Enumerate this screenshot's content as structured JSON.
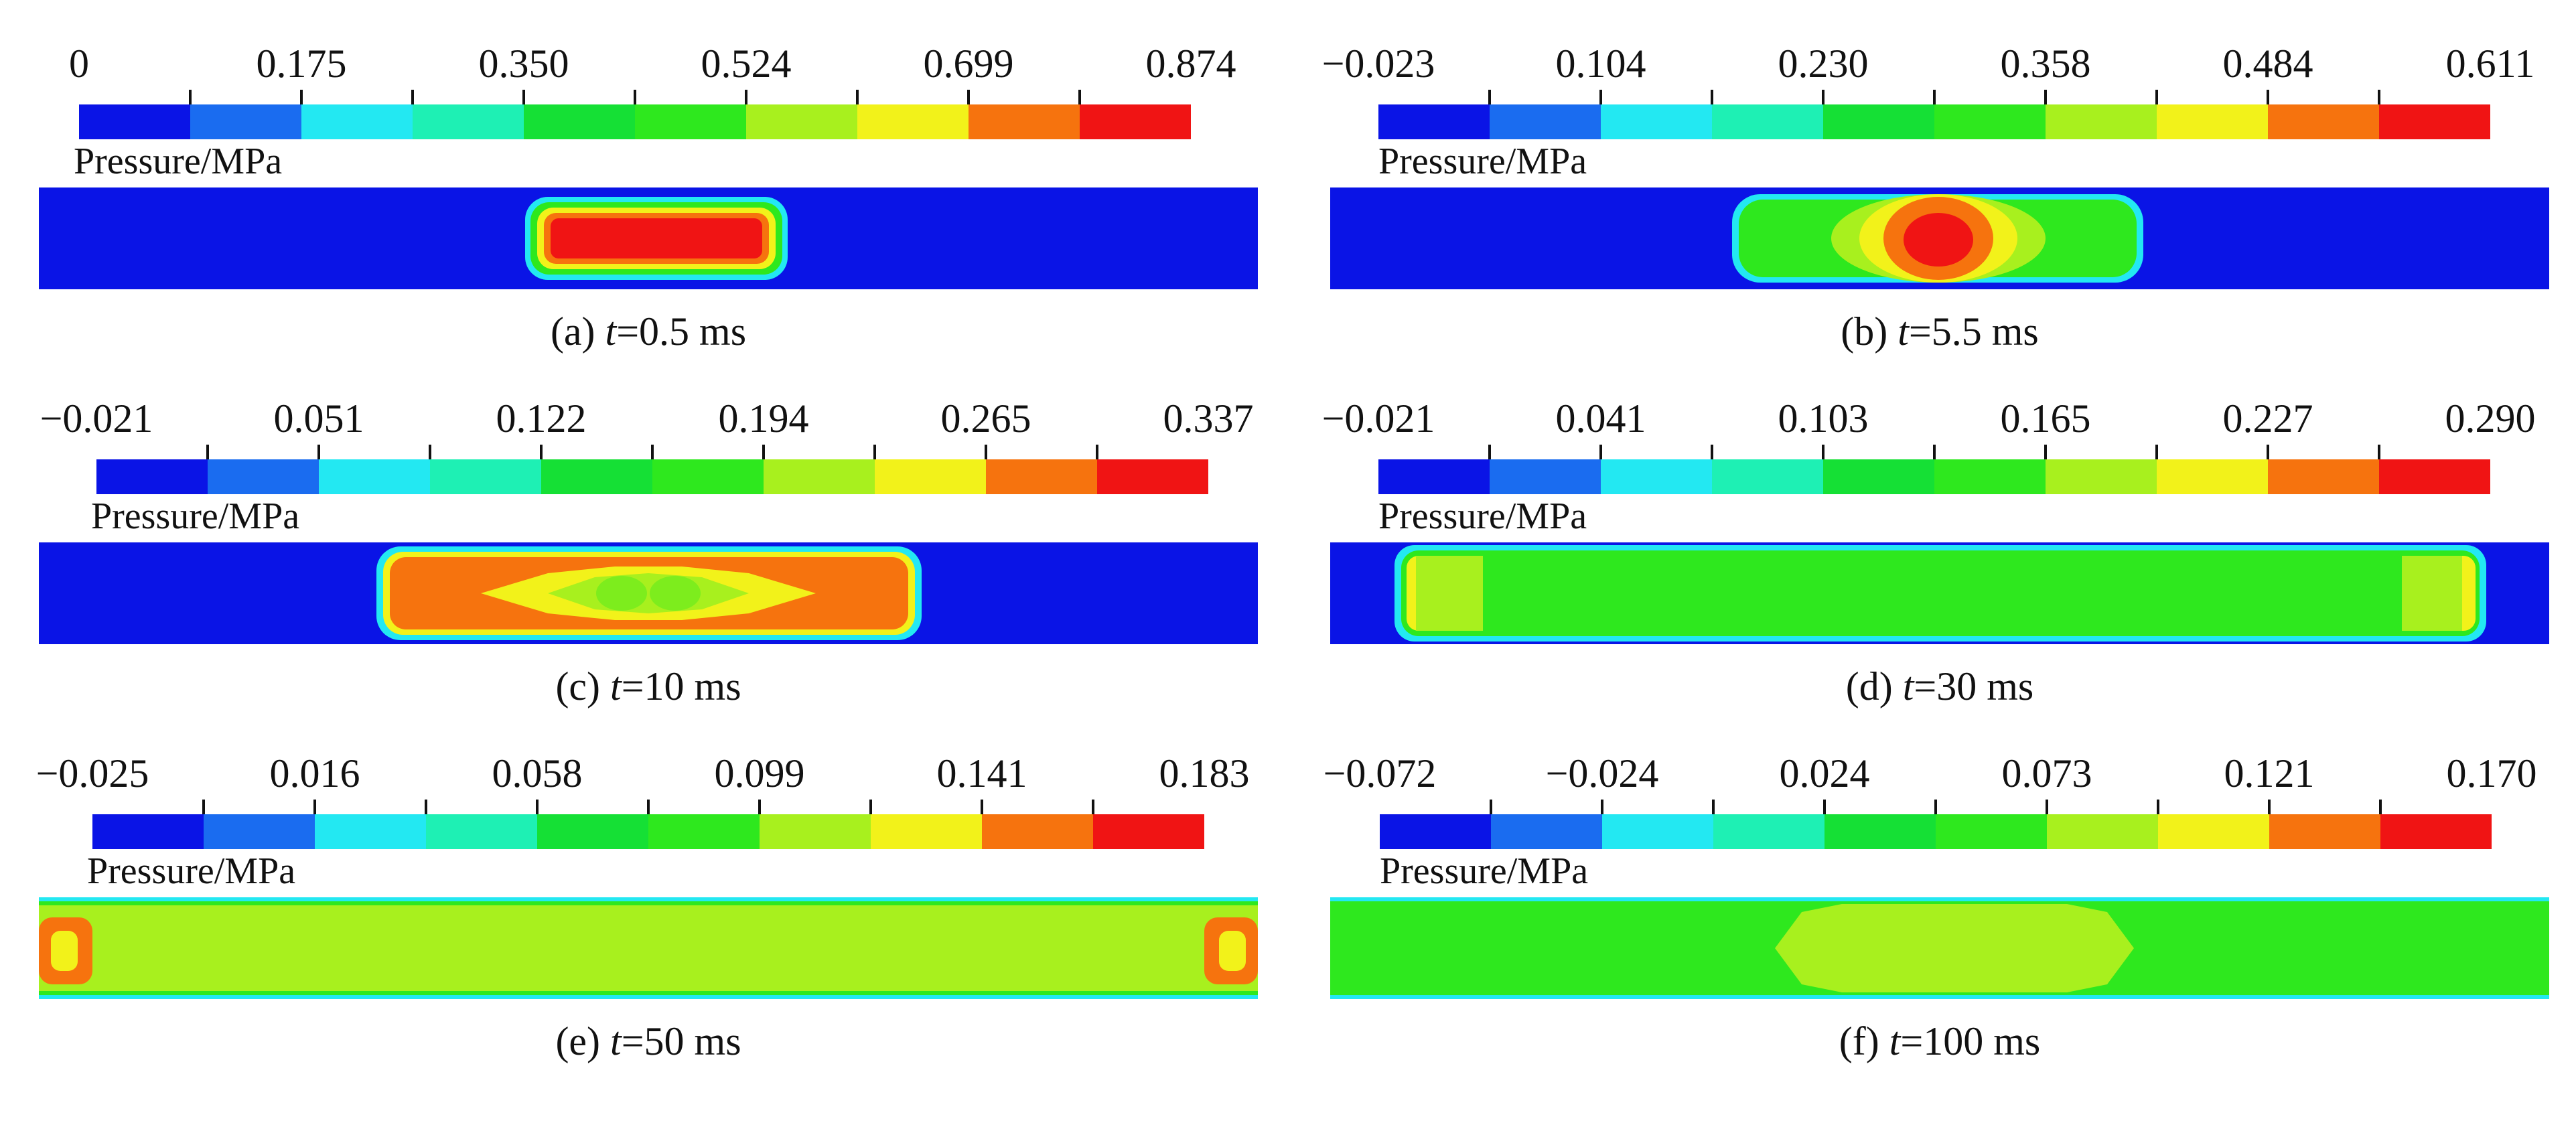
{
  "colorbar": {
    "label": "Pressure/MPa",
    "colors": [
      "#0a14e6",
      "#1a6cf0",
      "#23e8f2",
      "#1ef0b4",
      "#15e035",
      "#2ee81e",
      "#a8f01e",
      "#f2f21a",
      "#f6730e",
      "#f01414"
    ]
  },
  "panels": [
    {
      "ticks": [
        "0",
        "0.175",
        "0.350",
        "0.524",
        "0.699",
        "0.874"
      ],
      "caption_prefix": "(a) ",
      "caption_var": "t",
      "caption_rest": "=0.5 ms"
    },
    {
      "ticks": [
        "−0.023",
        "0.104",
        "0.230",
        "0.358",
        "0.484",
        "0.611"
      ],
      "caption_prefix": "(b) ",
      "caption_var": "t",
      "caption_rest": "=5.5 ms"
    },
    {
      "ticks": [
        "−0.021",
        "0.051",
        "0.122",
        "0.194",
        "0.265",
        "0.337"
      ],
      "caption_prefix": "(c) ",
      "caption_var": "t",
      "caption_rest": "=10 ms"
    },
    {
      "ticks": [
        "−0.021",
        "0.041",
        "0.103",
        "0.165",
        "0.227",
        "0.290"
      ],
      "caption_prefix": "(d) ",
      "caption_var": "t",
      "caption_rest": "=30 ms"
    },
    {
      "ticks": [
        "−0.025",
        "0.016",
        "0.058",
        "0.099",
        "0.141",
        "0.183"
      ],
      "caption_prefix": "(e) ",
      "caption_var": "t",
      "caption_rest": "=50 ms"
    },
    {
      "ticks": [
        "−0.072",
        "−0.024",
        "0.024",
        "0.073",
        "0.121",
        "0.170"
      ],
      "caption_prefix": "(f) ",
      "caption_var": "t",
      "caption_rest": "=100 ms"
    }
  ]
}
